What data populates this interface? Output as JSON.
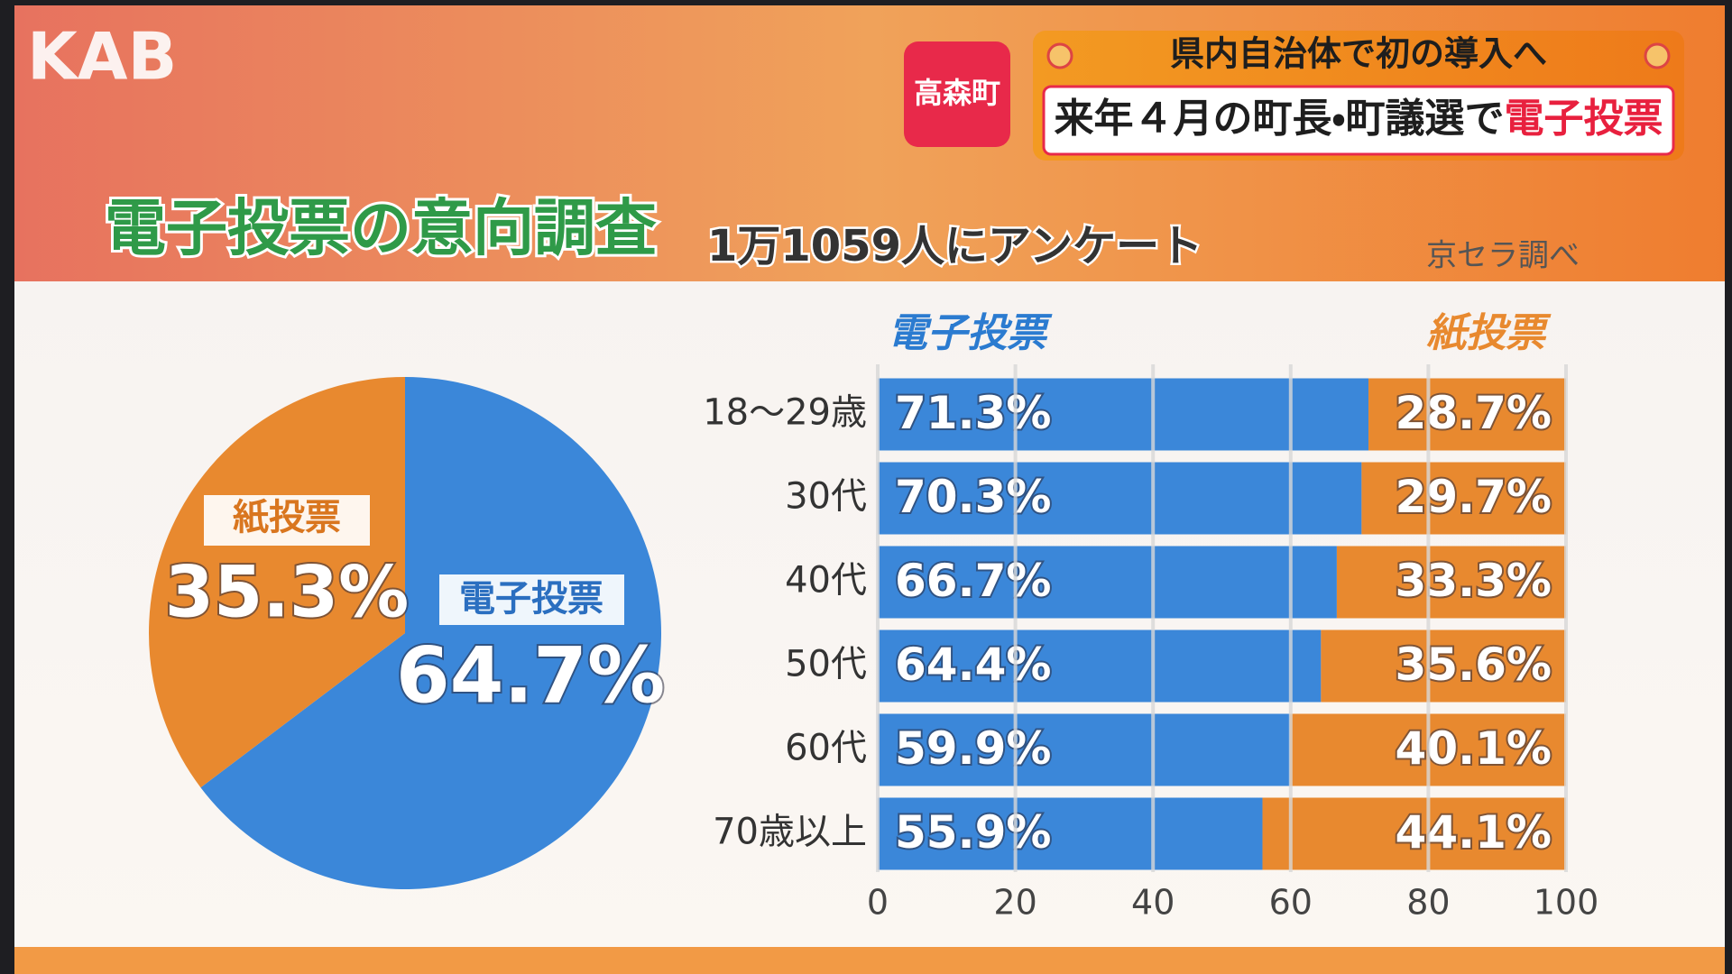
{
  "header": {
    "logo": "KAB",
    "location": "高森町",
    "headline": "県内自治体で初の導入へ",
    "subheadline": "来年４月の町長・町議選で",
    "subheadline_highlight": "電子投票"
  },
  "panel": {
    "title": "電子投票の意向調査",
    "subtitle": "1万1059人にアンケート",
    "source": "京セラ調べ"
  },
  "chart_data": [
    {
      "type": "pie",
      "categories": [
        "電子投票",
        "紙投票"
      ],
      "values": [
        64.7,
        35.3
      ],
      "value_labels": [
        "64.7%",
        "35.3%"
      ],
      "colors": [
        "#3b87d9",
        "#e8892f"
      ]
    },
    {
      "type": "bar",
      "orientation": "horizontal",
      "stacked": true,
      "categories": [
        "18～29歳",
        "30代",
        "40代",
        "50代",
        "60代",
        "70歳以上"
      ],
      "series": [
        {
          "name": "電子投票",
          "color": "#3b87d9",
          "values": [
            71.3,
            70.3,
            66.7,
            64.4,
            59.9,
            55.9
          ],
          "value_labels": [
            "71.3%",
            "70.3%",
            "66.7%",
            "64.4%",
            "59.9%",
            "55.9%"
          ]
        },
        {
          "name": "紙投票",
          "color": "#e8892f",
          "values": [
            28.7,
            29.7,
            33.3,
            35.6,
            40.1,
            44.1
          ],
          "value_labels": [
            "28.7%",
            "29.7%",
            "33.3%",
            "35.6%",
            "40.1%",
            "44.1%"
          ]
        }
      ],
      "xlim": [
        0,
        100
      ],
      "xticks": [
        0,
        20,
        40,
        60,
        80,
        100
      ],
      "grid": true
    }
  ]
}
